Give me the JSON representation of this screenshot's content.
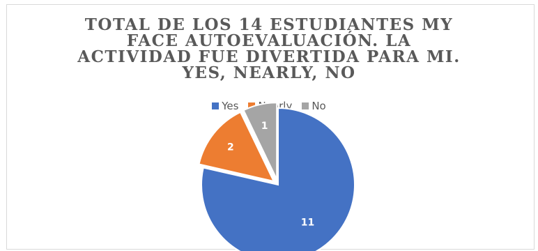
{
  "chart_data": {
    "type": "pie",
    "title_lines": [
      "TOTAL DE LOS 14 ESTUDIANTES MY",
      "FACE AUTOEVALUACIÓN. LA",
      "ACTIVIDAD FUE DIVERTIDA PARA MI.",
      "YES, NEARLY, NO"
    ],
    "categories": [
      "Yes",
      "Nearly",
      "No"
    ],
    "values": [
      11,
      2,
      1
    ],
    "data_labels": [
      "11",
      "2",
      "1"
    ],
    "colors": [
      "#4472c4",
      "#ed7d31",
      "#a5a5a5"
    ],
    "legend_position": "top",
    "exploded": true
  }
}
